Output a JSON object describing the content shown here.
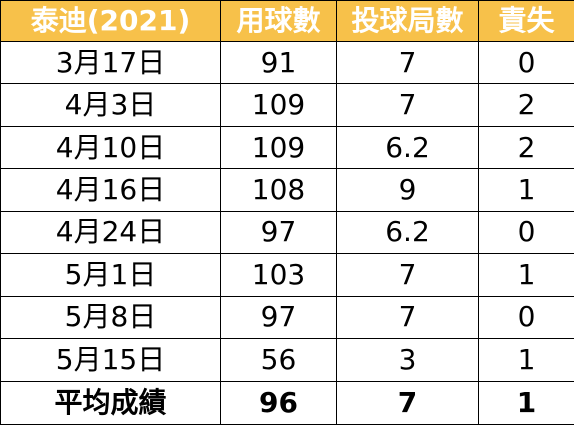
{
  "table": {
    "headers": [
      "泰迪(2021)",
      "用球數",
      "投球局數",
      "責失"
    ],
    "rows": [
      [
        "3月17日",
        "91",
        "7",
        "0"
      ],
      [
        "4月3日",
        "109",
        "7",
        "2"
      ],
      [
        "4月10日",
        "109",
        "6.2",
        "2"
      ],
      [
        "4月16日",
        "108",
        "9",
        "1"
      ],
      [
        "4月24日",
        "97",
        "6.2",
        "0"
      ],
      [
        "5月1日",
        "103",
        "7",
        "1"
      ],
      [
        "5月8日",
        "97",
        "7",
        "0"
      ],
      [
        "5月15日",
        "56",
        "3",
        "1"
      ]
    ],
    "summary": [
      "平均成績",
      "96",
      "7",
      "1"
    ]
  },
  "colors": {
    "header_bg": "#f7c14a",
    "header_text": "#ffffff",
    "border": "#000000"
  }
}
